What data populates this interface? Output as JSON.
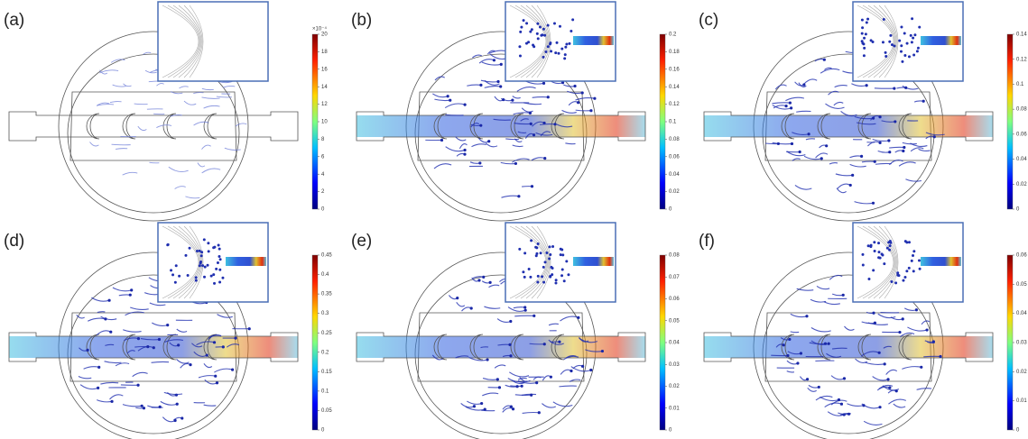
{
  "panels": [
    {
      "label": "(a)",
      "colorbar": {
        "multiplier": "×10⁻⁴",
        "range": [
          0,
          20
        ],
        "ticks": [
          0,
          2,
          4,
          6,
          8,
          10,
          12,
          14,
          16,
          18,
          20
        ]
      }
    },
    {
      "label": "(b)",
      "colorbar": {
        "range": [
          0,
          0.2
        ],
        "ticks": [
          0,
          0.02,
          0.04,
          0.06,
          0.08,
          0.1,
          0.12,
          0.14,
          0.16,
          0.18,
          0.2
        ]
      }
    },
    {
      "label": "(c)",
      "colorbar": {
        "range": [
          0,
          0.14
        ],
        "ticks": [
          0,
          0.02,
          0.04,
          0.06,
          0.08,
          0.1,
          0.12,
          0.14
        ]
      }
    },
    {
      "label": "(d)",
      "colorbar": {
        "range": [
          0,
          0.45
        ],
        "ticks": [
          0,
          0.05,
          0.1,
          0.15,
          0.2,
          0.25,
          0.3,
          0.35,
          0.4,
          0.45
        ]
      }
    },
    {
      "label": "(e)",
      "colorbar": {
        "range": [
          0,
          0.08
        ],
        "ticks": [
          0,
          0.01,
          0.02,
          0.03,
          0.04,
          0.05,
          0.06,
          0.07,
          0.08
        ]
      }
    },
    {
      "label": "(f)",
      "colorbar": {
        "range": [
          0,
          0.06
        ],
        "ticks": [
          0,
          0.01,
          0.02,
          0.03,
          0.04,
          0.05,
          0.06
        ]
      }
    }
  ]
}
